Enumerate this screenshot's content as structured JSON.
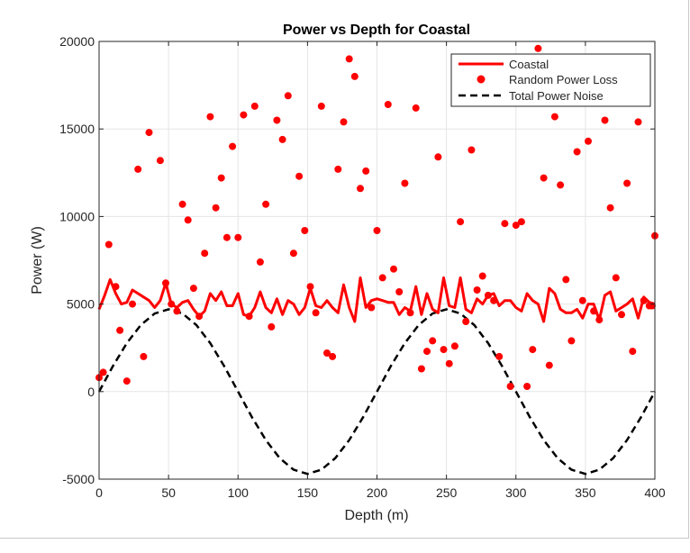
{
  "chart_data": {
    "type": "line",
    "title": "Power vs Depth for Coastal",
    "xlabel": "Depth (m)",
    "ylabel": "Power (W)",
    "xlim": [
      0,
      400
    ],
    "ylim": [
      -5000,
      20000
    ],
    "xticks": [
      0,
      50,
      100,
      150,
      200,
      250,
      300,
      350,
      400
    ],
    "yticks": [
      -5000,
      0,
      5000,
      10000,
      15000,
      20000
    ],
    "xtick_labels": [
      "0",
      "50",
      "100",
      "150",
      "200",
      "250",
      "300",
      "350",
      "400"
    ],
    "ytick_labels": [
      "-5000",
      "0",
      "5000",
      "10000",
      "15000",
      "20000"
    ],
    "grid": true,
    "legend_position": "top-right",
    "colors": {
      "series_red": "#ff0000",
      "noise": "#000000",
      "grid": "#e5e5e5",
      "axes": "#262626"
    },
    "series": [
      {
        "name": "Coastal",
        "kind": "line",
        "style": "solid",
        "x": [
          0,
          4,
          8,
          12,
          16,
          20,
          24,
          28,
          32,
          36,
          40,
          44,
          48,
          52,
          56,
          60,
          64,
          68,
          72,
          76,
          80,
          84,
          88,
          92,
          96,
          100,
          104,
          108,
          112,
          116,
          120,
          124,
          128,
          132,
          136,
          140,
          144,
          148,
          152,
          156,
          160,
          164,
          168,
          172,
          176,
          180,
          184,
          188,
          192,
          196,
          200,
          204,
          208,
          212,
          216,
          220,
          224,
          228,
          232,
          236,
          240,
          244,
          248,
          252,
          256,
          260,
          264,
          268,
          272,
          276,
          280,
          284,
          288,
          292,
          296,
          300,
          304,
          308,
          312,
          316,
          320,
          324,
          328,
          332,
          336,
          340,
          344,
          348,
          352,
          356,
          360,
          364,
          368,
          372,
          376,
          380,
          384,
          388,
          392,
          396,
          400
        ],
        "y": [
          4700,
          5500,
          6400,
          5600,
          5000,
          5100,
          5800,
          5600,
          5400,
          5200,
          4800,
          5200,
          6200,
          5000,
          4800,
          5100,
          5200,
          4700,
          4300,
          4600,
          5600,
          5200,
          5700,
          4900,
          4900,
          5600,
          4400,
          4300,
          4800,
          5700,
          4800,
          4500,
          5300,
          4400,
          5200,
          5000,
          4400,
          4800,
          5900,
          4900,
          4800,
          5200,
          4800,
          4500,
          6100,
          4800,
          4000,
          6500,
          4800,
          5200,
          5300,
          5200,
          5100,
          5100,
          4400,
          4800,
          4600,
          6000,
          4400,
          5600,
          4700,
          4500,
          6500,
          4900,
          4800,
          6500,
          4700,
          4500,
          5300,
          5000,
          5500,
          5600,
          4900,
          5200,
          5200,
          4800,
          4600,
          5600,
          5200,
          5000,
          4000,
          5900,
          5600,
          4700,
          4500,
          4500,
          4700,
          4200,
          5000,
          5000,
          4100,
          5500,
          5700,
          4600,
          4800,
          5000,
          5300,
          4200,
          5400,
          5100,
          5000
        ]
      },
      {
        "name": "Random Power Loss",
        "kind": "scatter",
        "x": [
          0,
          3,
          7,
          12,
          15,
          20,
          24,
          28,
          32,
          36,
          44,
          48,
          52,
          56,
          60,
          64,
          68,
          72,
          76,
          80,
          84,
          88,
          92,
          96,
          100,
          104,
          108,
          112,
          116,
          120,
          124,
          128,
          132,
          136,
          140,
          144,
          148,
          152,
          156,
          160,
          164,
          168,
          172,
          176,
          180,
          184,
          188,
          192,
          196,
          200,
          204,
          208,
          212,
          216,
          220,
          224,
          228,
          232,
          236,
          240,
          244,
          248,
          252,
          256,
          260,
          264,
          268,
          272,
          276,
          280,
          284,
          288,
          292,
          296,
          300,
          304,
          308,
          312,
          316,
          320,
          324,
          328,
          332,
          336,
          340,
          344,
          348,
          352,
          356,
          360,
          364,
          368,
          372,
          376,
          380,
          384,
          388,
          392,
          396,
          398,
          400
        ],
        "y": [
          800,
          1100,
          8400,
          6000,
          3500,
          600,
          5000,
          12700,
          2000,
          14800,
          13200,
          6200,
          5000,
          4600,
          10700,
          9800,
          5900,
          4300,
          7900,
          15700,
          10500,
          12200,
          8800,
          14000,
          8800,
          15800,
          4300,
          16300,
          7400,
          10700,
          3700,
          15500,
          14400,
          16900,
          7900,
          12300,
          9200,
          6000,
          4500,
          16300,
          2200,
          2000,
          12700,
          15400,
          19000,
          18000,
          11600,
          12600,
          4800,
          9200,
          6500,
          16400,
          7000,
          5700,
          11900,
          4500,
          16200,
          1300,
          2300,
          2900,
          13400,
          2400,
          1600,
          2600,
          9700,
          4000,
          13800,
          5800,
          6600,
          5500,
          5200,
          2000,
          9600,
          300,
          9500,
          9700,
          300,
          2400,
          19600,
          12200,
          1500,
          15700,
          11800,
          6400,
          2900,
          13700,
          5200,
          14300,
          4600,
          4100,
          15500,
          10500,
          6500,
          4400,
          11900,
          2300,
          15400,
          5200,
          4900,
          4900,
          8900
        ]
      },
      {
        "name": "Total Power Noise",
        "kind": "line",
        "style": "dashed",
        "x": [
          0,
          10,
          20,
          30,
          40,
          50,
          60,
          70,
          80,
          90,
          100,
          110,
          120,
          130,
          140,
          150,
          160,
          170,
          180,
          190,
          200,
          210,
          220,
          230,
          240,
          250,
          260,
          270,
          280,
          290,
          300,
          310,
          320,
          330,
          340,
          350,
          360,
          370,
          380,
          390,
          400
        ],
        "y": [
          0,
          1460,
          2770,
          3800,
          4460,
          4700,
          4460,
          3800,
          2770,
          1460,
          0,
          -1460,
          -2770,
          -3800,
          -4460,
          -4700,
          -4460,
          -3800,
          -2770,
          -1460,
          0,
          1460,
          2770,
          3800,
          4460,
          4700,
          4460,
          3800,
          2770,
          1460,
          0,
          -1460,
          -2770,
          -3800,
          -4460,
          -4700,
          -4460,
          -3800,
          -2770,
          -1460,
          0
        ]
      }
    ]
  }
}
